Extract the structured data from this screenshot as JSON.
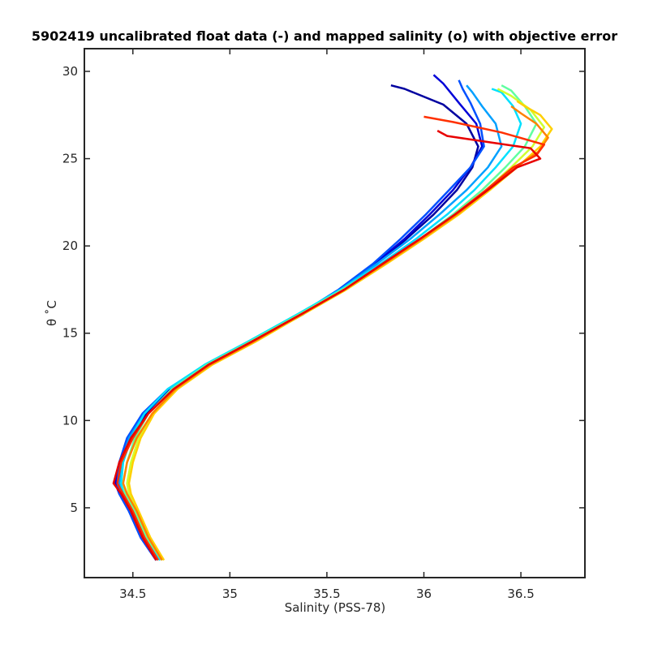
{
  "chart_data": {
    "type": "line",
    "title": "5902419 uncalibrated float data (-) and mapped salinity (o) with objective error",
    "xlabel": "Salinity (PSS-78)",
    "ylabel": "θ ˚C",
    "xlim": [
      34.25,
      36.83
    ],
    "ylim": [
      1.0,
      31.3
    ],
    "xticks": [
      34.5,
      35,
      35.5,
      36,
      36.5
    ],
    "xtick_labels": [
      "34.5",
      "35",
      "35.5",
      "36",
      "36.5"
    ],
    "yticks": [
      5,
      10,
      15,
      20,
      25,
      30
    ],
    "ytick_labels": [
      "5",
      "10",
      "15",
      "20",
      "25",
      "30"
    ],
    "grid": false,
    "colormap": "jet (profile number: blue = early, red = late)",
    "colormap_stops": [
      "#00008f",
      "#0000ff",
      "#0080ff",
      "#00ffff",
      "#80ff80",
      "#ffff00",
      "#ff8000",
      "#ff0000"
    ],
    "series": [
      {
        "color": "#0000a0",
        "points": [
          [
            34.62,
            2.0
          ],
          [
            34.55,
            3.3
          ],
          [
            34.49,
            4.8
          ],
          [
            34.44,
            5.8
          ],
          [
            34.42,
            6.4
          ],
          [
            34.44,
            7.6
          ],
          [
            34.49,
            9.0
          ],
          [
            34.57,
            10.4
          ],
          [
            34.7,
            11.8
          ],
          [
            34.9,
            13.2
          ],
          [
            35.12,
            14.5
          ],
          [
            35.38,
            16.1
          ],
          [
            35.58,
            17.5
          ],
          [
            35.76,
            19.0
          ],
          [
            35.91,
            20.4
          ],
          [
            36.05,
            21.8
          ],
          [
            36.17,
            23.2
          ],
          [
            36.25,
            24.5
          ],
          [
            36.28,
            25.7
          ],
          [
            36.22,
            27.0
          ],
          [
            36.1,
            28.1
          ],
          [
            35.9,
            29.0
          ],
          [
            35.83,
            29.2
          ]
        ]
      },
      {
        "color": "#0000d8",
        "points": [
          [
            34.62,
            2.0
          ],
          [
            34.54,
            3.3
          ],
          [
            34.48,
            4.8
          ],
          [
            34.43,
            5.8
          ],
          [
            34.41,
            6.4
          ],
          [
            34.43,
            7.6
          ],
          [
            34.48,
            9.0
          ],
          [
            34.56,
            10.4
          ],
          [
            34.69,
            11.8
          ],
          [
            34.89,
            13.2
          ],
          [
            35.11,
            14.5
          ],
          [
            35.37,
            16.1
          ],
          [
            35.57,
            17.5
          ],
          [
            35.75,
            19.0
          ],
          [
            35.9,
            20.4
          ],
          [
            36.03,
            21.8
          ],
          [
            36.15,
            23.2
          ],
          [
            36.24,
            24.5
          ],
          [
            36.3,
            25.7
          ],
          [
            36.27,
            27.0
          ],
          [
            36.18,
            28.2
          ],
          [
            36.1,
            29.3
          ],
          [
            36.05,
            29.8
          ]
        ]
      },
      {
        "color": "#0050ff",
        "points": [
          [
            34.62,
            2.0
          ],
          [
            34.54,
            3.3
          ],
          [
            34.48,
            4.8
          ],
          [
            34.43,
            5.8
          ],
          [
            34.42,
            6.4
          ],
          [
            34.43,
            7.6
          ],
          [
            34.47,
            9.0
          ],
          [
            34.55,
            10.4
          ],
          [
            34.68,
            11.8
          ],
          [
            34.88,
            13.2
          ],
          [
            35.1,
            14.5
          ],
          [
            35.36,
            16.1
          ],
          [
            35.56,
            17.5
          ],
          [
            35.74,
            19.0
          ],
          [
            35.88,
            20.4
          ],
          [
            36.01,
            21.8
          ],
          [
            36.13,
            23.2
          ],
          [
            36.24,
            24.5
          ],
          [
            36.31,
            25.7
          ],
          [
            36.29,
            27.0
          ],
          [
            36.24,
            28.2
          ],
          [
            36.2,
            29.0
          ],
          [
            36.18,
            29.5
          ]
        ]
      },
      {
        "color": "#00a0ff",
        "points": [
          [
            34.63,
            2.0
          ],
          [
            34.55,
            3.3
          ],
          [
            34.49,
            4.8
          ],
          [
            34.44,
            5.8
          ],
          [
            34.43,
            6.4
          ],
          [
            34.44,
            7.6
          ],
          [
            34.48,
            9.0
          ],
          [
            34.56,
            10.4
          ],
          [
            34.68,
            11.8
          ],
          [
            34.88,
            13.2
          ],
          [
            35.1,
            14.5
          ],
          [
            35.36,
            16.1
          ],
          [
            35.57,
            17.5
          ],
          [
            35.76,
            19.0
          ],
          [
            35.93,
            20.4
          ],
          [
            36.08,
            21.8
          ],
          [
            36.22,
            23.2
          ],
          [
            36.33,
            24.5
          ],
          [
            36.4,
            25.7
          ],
          [
            36.37,
            27.0
          ],
          [
            36.3,
            28.0
          ],
          [
            36.25,
            28.8
          ],
          [
            36.22,
            29.2
          ]
        ]
      },
      {
        "color": "#00e0ff",
        "points": [
          [
            34.64,
            2.0
          ],
          [
            34.56,
            3.3
          ],
          [
            34.5,
            4.8
          ],
          [
            34.45,
            5.8
          ],
          [
            34.44,
            6.4
          ],
          [
            34.45,
            7.6
          ],
          [
            34.49,
            9.0
          ],
          [
            34.56,
            10.4
          ],
          [
            34.68,
            11.8
          ],
          [
            34.87,
            13.2
          ],
          [
            35.09,
            14.5
          ],
          [
            35.35,
            16.1
          ],
          [
            35.57,
            17.5
          ],
          [
            35.78,
            19.0
          ],
          [
            35.96,
            20.4
          ],
          [
            36.12,
            21.8
          ],
          [
            36.26,
            23.2
          ],
          [
            36.37,
            24.5
          ],
          [
            36.46,
            25.7
          ],
          [
            36.5,
            27.0
          ],
          [
            36.46,
            28.0
          ],
          [
            36.4,
            28.8
          ],
          [
            36.35,
            29.0
          ]
        ]
      },
      {
        "color": "#60ffa0",
        "points": [
          [
            34.65,
            2.0
          ],
          [
            34.57,
            3.3
          ],
          [
            34.51,
            4.8
          ],
          [
            34.46,
            5.8
          ],
          [
            34.45,
            6.4
          ],
          [
            34.47,
            7.6
          ],
          [
            34.51,
            9.0
          ],
          [
            34.58,
            10.4
          ],
          [
            34.7,
            11.8
          ],
          [
            34.88,
            13.2
          ],
          [
            35.1,
            14.5
          ],
          [
            35.36,
            16.1
          ],
          [
            35.58,
            17.5
          ],
          [
            35.8,
            19.0
          ],
          [
            35.98,
            20.4
          ],
          [
            36.15,
            21.8
          ],
          [
            36.3,
            23.2
          ],
          [
            36.42,
            24.5
          ],
          [
            36.52,
            25.7
          ],
          [
            36.58,
            27.0
          ],
          [
            36.52,
            28.0
          ],
          [
            36.45,
            28.9
          ],
          [
            36.4,
            29.2
          ]
        ]
      },
      {
        "color": "#d0ff30",
        "points": [
          [
            34.65,
            2.0
          ],
          [
            34.58,
            3.3
          ],
          [
            34.52,
            4.8
          ],
          [
            34.48,
            5.8
          ],
          [
            34.47,
            6.4
          ],
          [
            34.49,
            7.6
          ],
          [
            34.53,
            9.0
          ],
          [
            34.6,
            10.4
          ],
          [
            34.72,
            11.8
          ],
          [
            34.9,
            13.2
          ],
          [
            35.12,
            14.5
          ],
          [
            35.37,
            16.1
          ],
          [
            35.59,
            17.5
          ],
          [
            35.8,
            19.0
          ],
          [
            35.99,
            20.4
          ],
          [
            36.16,
            21.8
          ],
          [
            36.32,
            23.2
          ],
          [
            36.45,
            24.5
          ],
          [
            36.56,
            25.7
          ],
          [
            36.62,
            26.8
          ],
          [
            36.55,
            27.8
          ],
          [
            36.45,
            28.6
          ],
          [
            36.38,
            29.0
          ]
        ]
      },
      {
        "color": "#ffd000",
        "points": [
          [
            34.66,
            2.0
          ],
          [
            34.59,
            3.3
          ],
          [
            34.53,
            4.8
          ],
          [
            34.49,
            5.8
          ],
          [
            34.48,
            6.4
          ],
          [
            34.5,
            7.6
          ],
          [
            34.54,
            9.0
          ],
          [
            34.61,
            10.4
          ],
          [
            34.73,
            11.8
          ],
          [
            34.91,
            13.2
          ],
          [
            35.13,
            14.5
          ],
          [
            35.38,
            16.1
          ],
          [
            35.6,
            17.5
          ],
          [
            35.81,
            19.0
          ],
          [
            36.0,
            20.4
          ],
          [
            36.18,
            21.8
          ],
          [
            36.34,
            23.2
          ],
          [
            36.48,
            24.5
          ],
          [
            36.6,
            25.7
          ],
          [
            36.66,
            26.7
          ],
          [
            36.6,
            27.5
          ],
          [
            36.52,
            28.0
          ],
          [
            36.48,
            28.3
          ]
        ]
      },
      {
        "color": "#ff8000",
        "points": [
          [
            34.65,
            2.0
          ],
          [
            34.58,
            3.3
          ],
          [
            34.52,
            4.8
          ],
          [
            34.47,
            5.8
          ],
          [
            34.45,
            6.4
          ],
          [
            34.47,
            7.6
          ],
          [
            34.52,
            9.0
          ],
          [
            34.6,
            10.4
          ],
          [
            34.72,
            11.8
          ],
          [
            34.9,
            13.2
          ],
          [
            35.12,
            14.5
          ],
          [
            35.37,
            16.1
          ],
          [
            35.59,
            17.5
          ],
          [
            35.8,
            19.0
          ],
          [
            35.99,
            20.4
          ],
          [
            36.17,
            21.8
          ],
          [
            36.33,
            23.2
          ],
          [
            36.47,
            24.5
          ],
          [
            36.59,
            25.4
          ],
          [
            36.64,
            26.2
          ],
          [
            36.58,
            27.0
          ],
          [
            36.5,
            27.6
          ],
          [
            36.45,
            28.0
          ]
        ]
      },
      {
        "color": "#ff3000",
        "points": [
          [
            34.63,
            2.0
          ],
          [
            34.56,
            3.3
          ],
          [
            34.5,
            4.8
          ],
          [
            34.45,
            5.8
          ],
          [
            34.42,
            6.4
          ],
          [
            34.44,
            7.6
          ],
          [
            34.5,
            9.0
          ],
          [
            34.58,
            10.4
          ],
          [
            34.71,
            11.8
          ],
          [
            34.89,
            13.2
          ],
          [
            35.11,
            14.5
          ],
          [
            35.37,
            16.1
          ],
          [
            35.59,
            17.5
          ],
          [
            35.79,
            19.0
          ],
          [
            35.98,
            20.4
          ],
          [
            36.16,
            21.8
          ],
          [
            36.32,
            23.2
          ],
          [
            36.46,
            24.5
          ],
          [
            36.58,
            25.2
          ],
          [
            36.62,
            25.8
          ],
          [
            36.4,
            26.5
          ],
          [
            36.15,
            27.1
          ],
          [
            36.0,
            27.4
          ]
        ]
      },
      {
        "color": "#e80000",
        "points": [
          [
            34.62,
            2.0
          ],
          [
            34.55,
            3.3
          ],
          [
            34.49,
            4.8
          ],
          [
            34.44,
            5.8
          ],
          [
            34.4,
            6.4
          ],
          [
            34.43,
            7.6
          ],
          [
            34.49,
            9.0
          ],
          [
            34.58,
            10.4
          ],
          [
            34.71,
            11.8
          ],
          [
            34.89,
            13.2
          ],
          [
            35.11,
            14.5
          ],
          [
            35.37,
            16.1
          ],
          [
            35.59,
            17.5
          ],
          [
            35.79,
            19.0
          ],
          [
            35.98,
            20.4
          ],
          [
            36.16,
            21.8
          ],
          [
            36.33,
            23.2
          ],
          [
            36.48,
            24.5
          ],
          [
            36.6,
            25.0
          ],
          [
            36.55,
            25.6
          ],
          [
            36.3,
            26.0
          ],
          [
            36.12,
            26.3
          ],
          [
            36.07,
            26.6
          ]
        ]
      }
    ]
  }
}
